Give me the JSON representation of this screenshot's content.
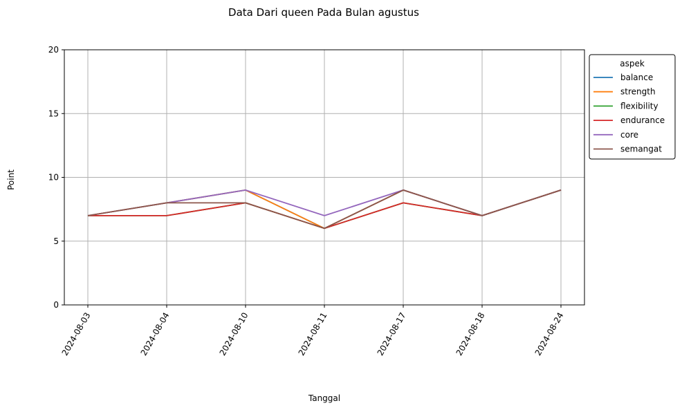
{
  "chart_data": {
    "type": "line",
    "title": "Data Dari queen Pada Bulan agustus",
    "xlabel": "Tanggal",
    "ylabel": "Point",
    "categories": [
      "2024-08-03",
      "2024-08-04",
      "2024-08-10",
      "2024-08-11",
      "2024-08-17",
      "2024-08-18",
      "2024-08-24"
    ],
    "ylim": [
      0,
      20
    ],
    "yticks": [
      0,
      5,
      10,
      15,
      20
    ],
    "grid": true,
    "legend": {
      "title": "aspek",
      "position": "outside-right"
    },
    "series": [
      {
        "name": "balance",
        "color": "#1f77b4",
        "values": [
          7,
          8,
          9,
          6,
          9,
          7,
          9
        ]
      },
      {
        "name": "strength",
        "color": "#ff7f0e",
        "values": [
          7,
          8,
          9,
          6,
          9,
          7,
          9
        ]
      },
      {
        "name": "flexibility",
        "color": "#2ca02c",
        "values": [
          7,
          7,
          8,
          6,
          8,
          7,
          9
        ]
      },
      {
        "name": "endurance",
        "color": "#d62728",
        "values": [
          7,
          7,
          8,
          6,
          8,
          7,
          9
        ]
      },
      {
        "name": "core",
        "color": "#9467bd",
        "values": [
          7,
          8,
          9,
          7,
          9,
          7,
          9
        ]
      },
      {
        "name": "semangat",
        "color": "#8c564b",
        "values": [
          7,
          8,
          8,
          6,
          9,
          7,
          9
        ]
      }
    ]
  }
}
